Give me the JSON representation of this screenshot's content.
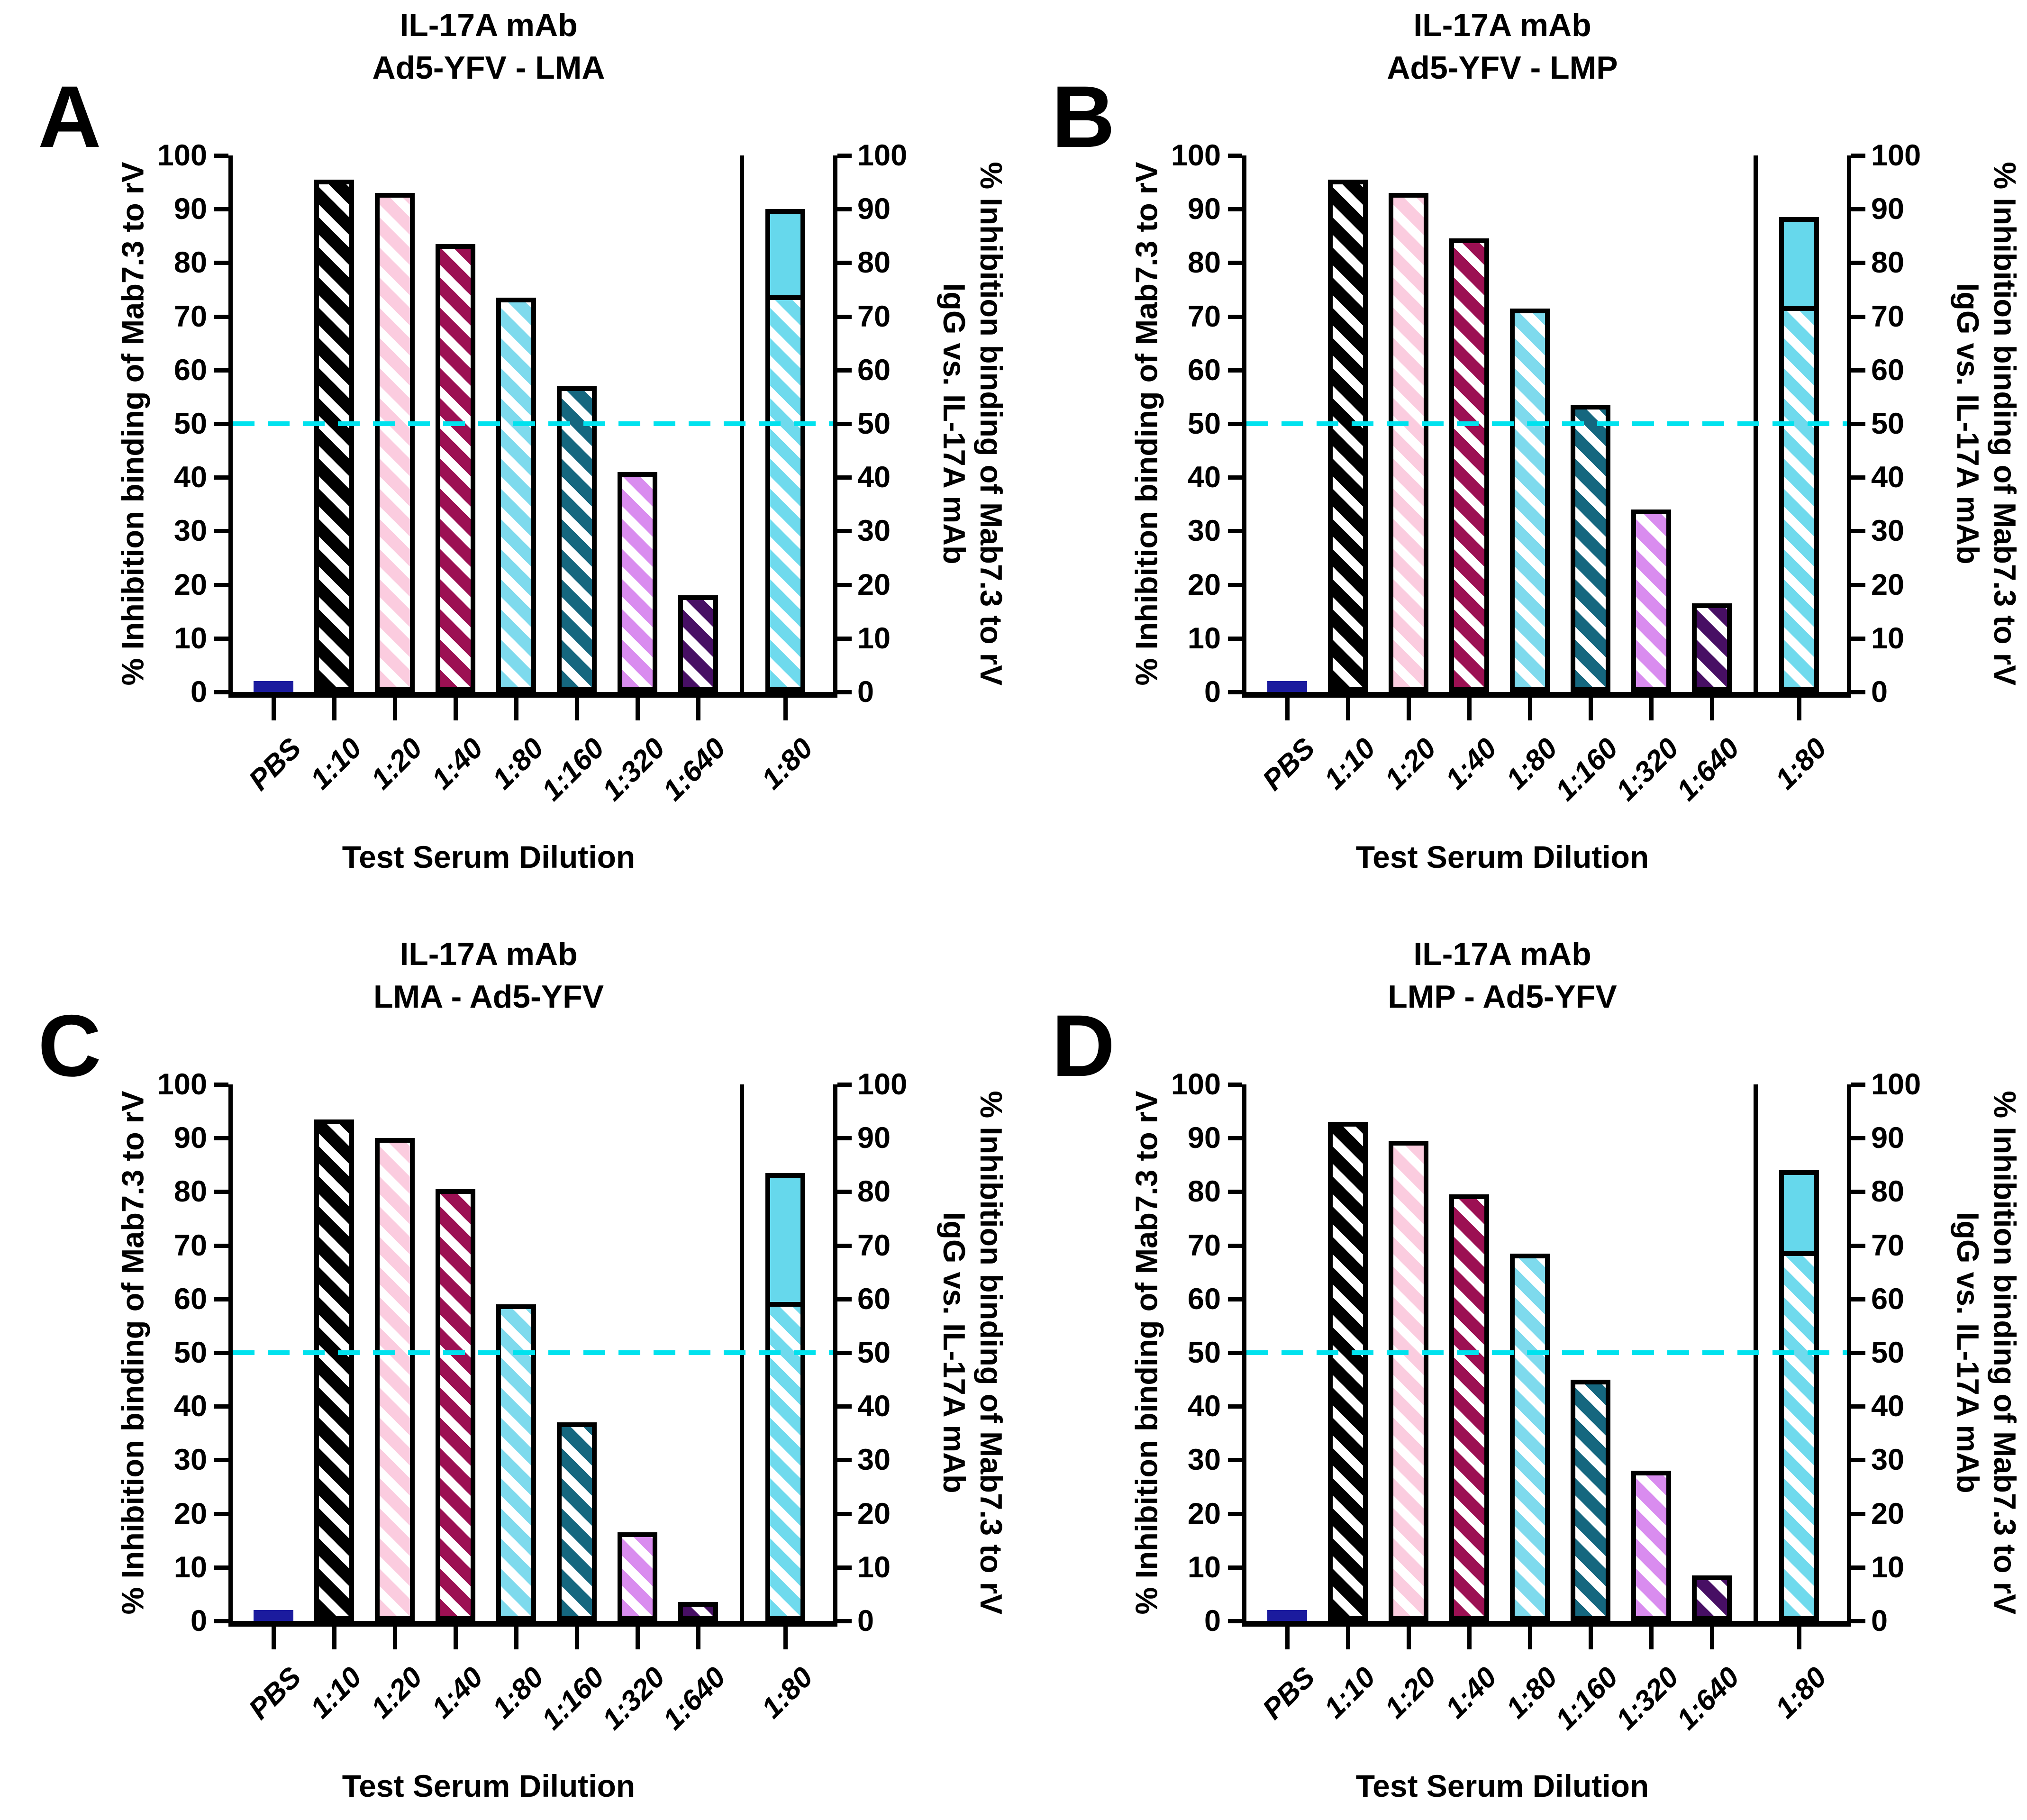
{
  "axes": {
    "left_label": "% Inhibition binding of Mab7.3 to rV",
    "right_label_line1": "% Inhibition binding of Mab7.3 to rV",
    "right_label_line2": "IgG vs. IL-17A mAb",
    "x_label": "Test Serum Dilution",
    "y_ticks": [
      0,
      10,
      20,
      30,
      40,
      50,
      60,
      70,
      80,
      90,
      100
    ],
    "ylim": [
      0,
      100
    ],
    "threshold_line_y": 50
  },
  "colors": {
    "pbs": "#1B1B9E",
    "serum_1_10": "#000000",
    "serum_1_20": "#FBCCDF",
    "serum_1_40": "#9C1053",
    "serum_1_80": "#7EDAED",
    "serum_1_160": "#15677F",
    "serum_1_320": "#D98CEF",
    "serum_1_640": "#470F64",
    "igg_hatch": "#6FDAED",
    "igg_solid": "#66D8EC",
    "threshold": "#00E2EE",
    "axis": "#000000",
    "background": "#FFFFFF"
  },
  "panels": [
    {
      "letter": "A",
      "title_line1": "IL-17A mAb",
      "title_line2": "Ad5-YFV - LMA"
    },
    {
      "letter": "B",
      "title_line1": "IL-17A mAb",
      "title_line2": "Ad5-YFV - LMP"
    },
    {
      "letter": "C",
      "title_line1": "IL-17A mAb",
      "title_line2": "LMA - Ad5-YFV"
    },
    {
      "letter": "D",
      "title_line1": "IL-17A mAb",
      "title_line2": "LMP - Ad5-YFV"
    }
  ],
  "chart_data": [
    {
      "type": "bar",
      "panel": "A",
      "title": "IL-17A mAb",
      "subtitle": "Ad5-YFV - LMA",
      "xlabel": "Test Serum Dilution",
      "ylabel_left": "% Inhibition binding of Mab7.3 to rV",
      "ylabel_right": "% Inhibition binding of Mab7.3 to rV IgG vs. IL-17A mAb",
      "ylim": [
        0,
        100
      ],
      "grid": false,
      "threshold_line_y": 50,
      "categories": [
        "PBS",
        "1:10",
        "1:20",
        "1:40",
        "1:80",
        "1:160",
        "1:320",
        "1:640"
      ],
      "values": [
        2,
        95.5,
        93,
        83.5,
        73.5,
        57,
        41,
        18
      ],
      "stacked_bar": {
        "category": "1:80",
        "serum_segment": 73.5,
        "total_with_igg": 90
      }
    },
    {
      "type": "bar",
      "panel": "B",
      "title": "IL-17A mAb",
      "subtitle": "Ad5-YFV - LMP",
      "xlabel": "Test Serum Dilution",
      "ylabel_left": "% Inhibition binding of Mab7.3 to rV",
      "ylabel_right": "% Inhibition binding of Mab7.3 to rV IgG vs. IL-17A mAb",
      "ylim": [
        0,
        100
      ],
      "grid": false,
      "threshold_line_y": 50,
      "categories": [
        "PBS",
        "1:10",
        "1:20",
        "1:40",
        "1:80",
        "1:160",
        "1:320",
        "1:640"
      ],
      "values": [
        2,
        95.5,
        93,
        84.5,
        71.5,
        53.5,
        34,
        16.5
      ],
      "stacked_bar": {
        "category": "1:80",
        "serum_segment": 71.5,
        "total_with_igg": 88.5
      }
    },
    {
      "type": "bar",
      "panel": "C",
      "title": "IL-17A mAb",
      "subtitle": "LMA - Ad5-YFV",
      "xlabel": "Test Serum Dilution",
      "ylabel_left": "% Inhibition binding of Mab7.3 to rV",
      "ylabel_right": "% Inhibition binding of Mab7.3 to rV IgG vs. IL-17A mAb",
      "ylim": [
        0,
        100
      ],
      "grid": false,
      "threshold_line_y": 50,
      "categories": [
        "PBS",
        "1:10",
        "1:20",
        "1:40",
        "1:80",
        "1:160",
        "1:320",
        "1:640"
      ],
      "values": [
        2,
        93.5,
        90,
        80.5,
        59,
        37,
        16.5,
        3.5
      ],
      "stacked_bar": {
        "category": "1:80",
        "serum_segment": 59,
        "total_with_igg": 83.5
      }
    },
    {
      "type": "bar",
      "panel": "D",
      "title": "IL-17A mAb",
      "subtitle": "LMP - Ad5-YFV",
      "xlabel": "Test Serum Dilution",
      "ylabel_left": "% Inhibition binding of Mab7.3 to rV",
      "ylabel_right": "% Inhibition binding of Mab7.3 to rV IgG vs. IL-17A mAb",
      "ylim": [
        0,
        100
      ],
      "grid": false,
      "threshold_line_y": 50,
      "categories": [
        "PBS",
        "1:10",
        "1:20",
        "1:40",
        "1:80",
        "1:160",
        "1:320",
        "1:640"
      ],
      "values": [
        2,
        93,
        89.5,
        79.5,
        68.5,
        45,
        28,
        8.5
      ],
      "stacked_bar": {
        "category": "1:80",
        "serum_segment": 68.5,
        "total_with_igg": 84
      }
    }
  ]
}
